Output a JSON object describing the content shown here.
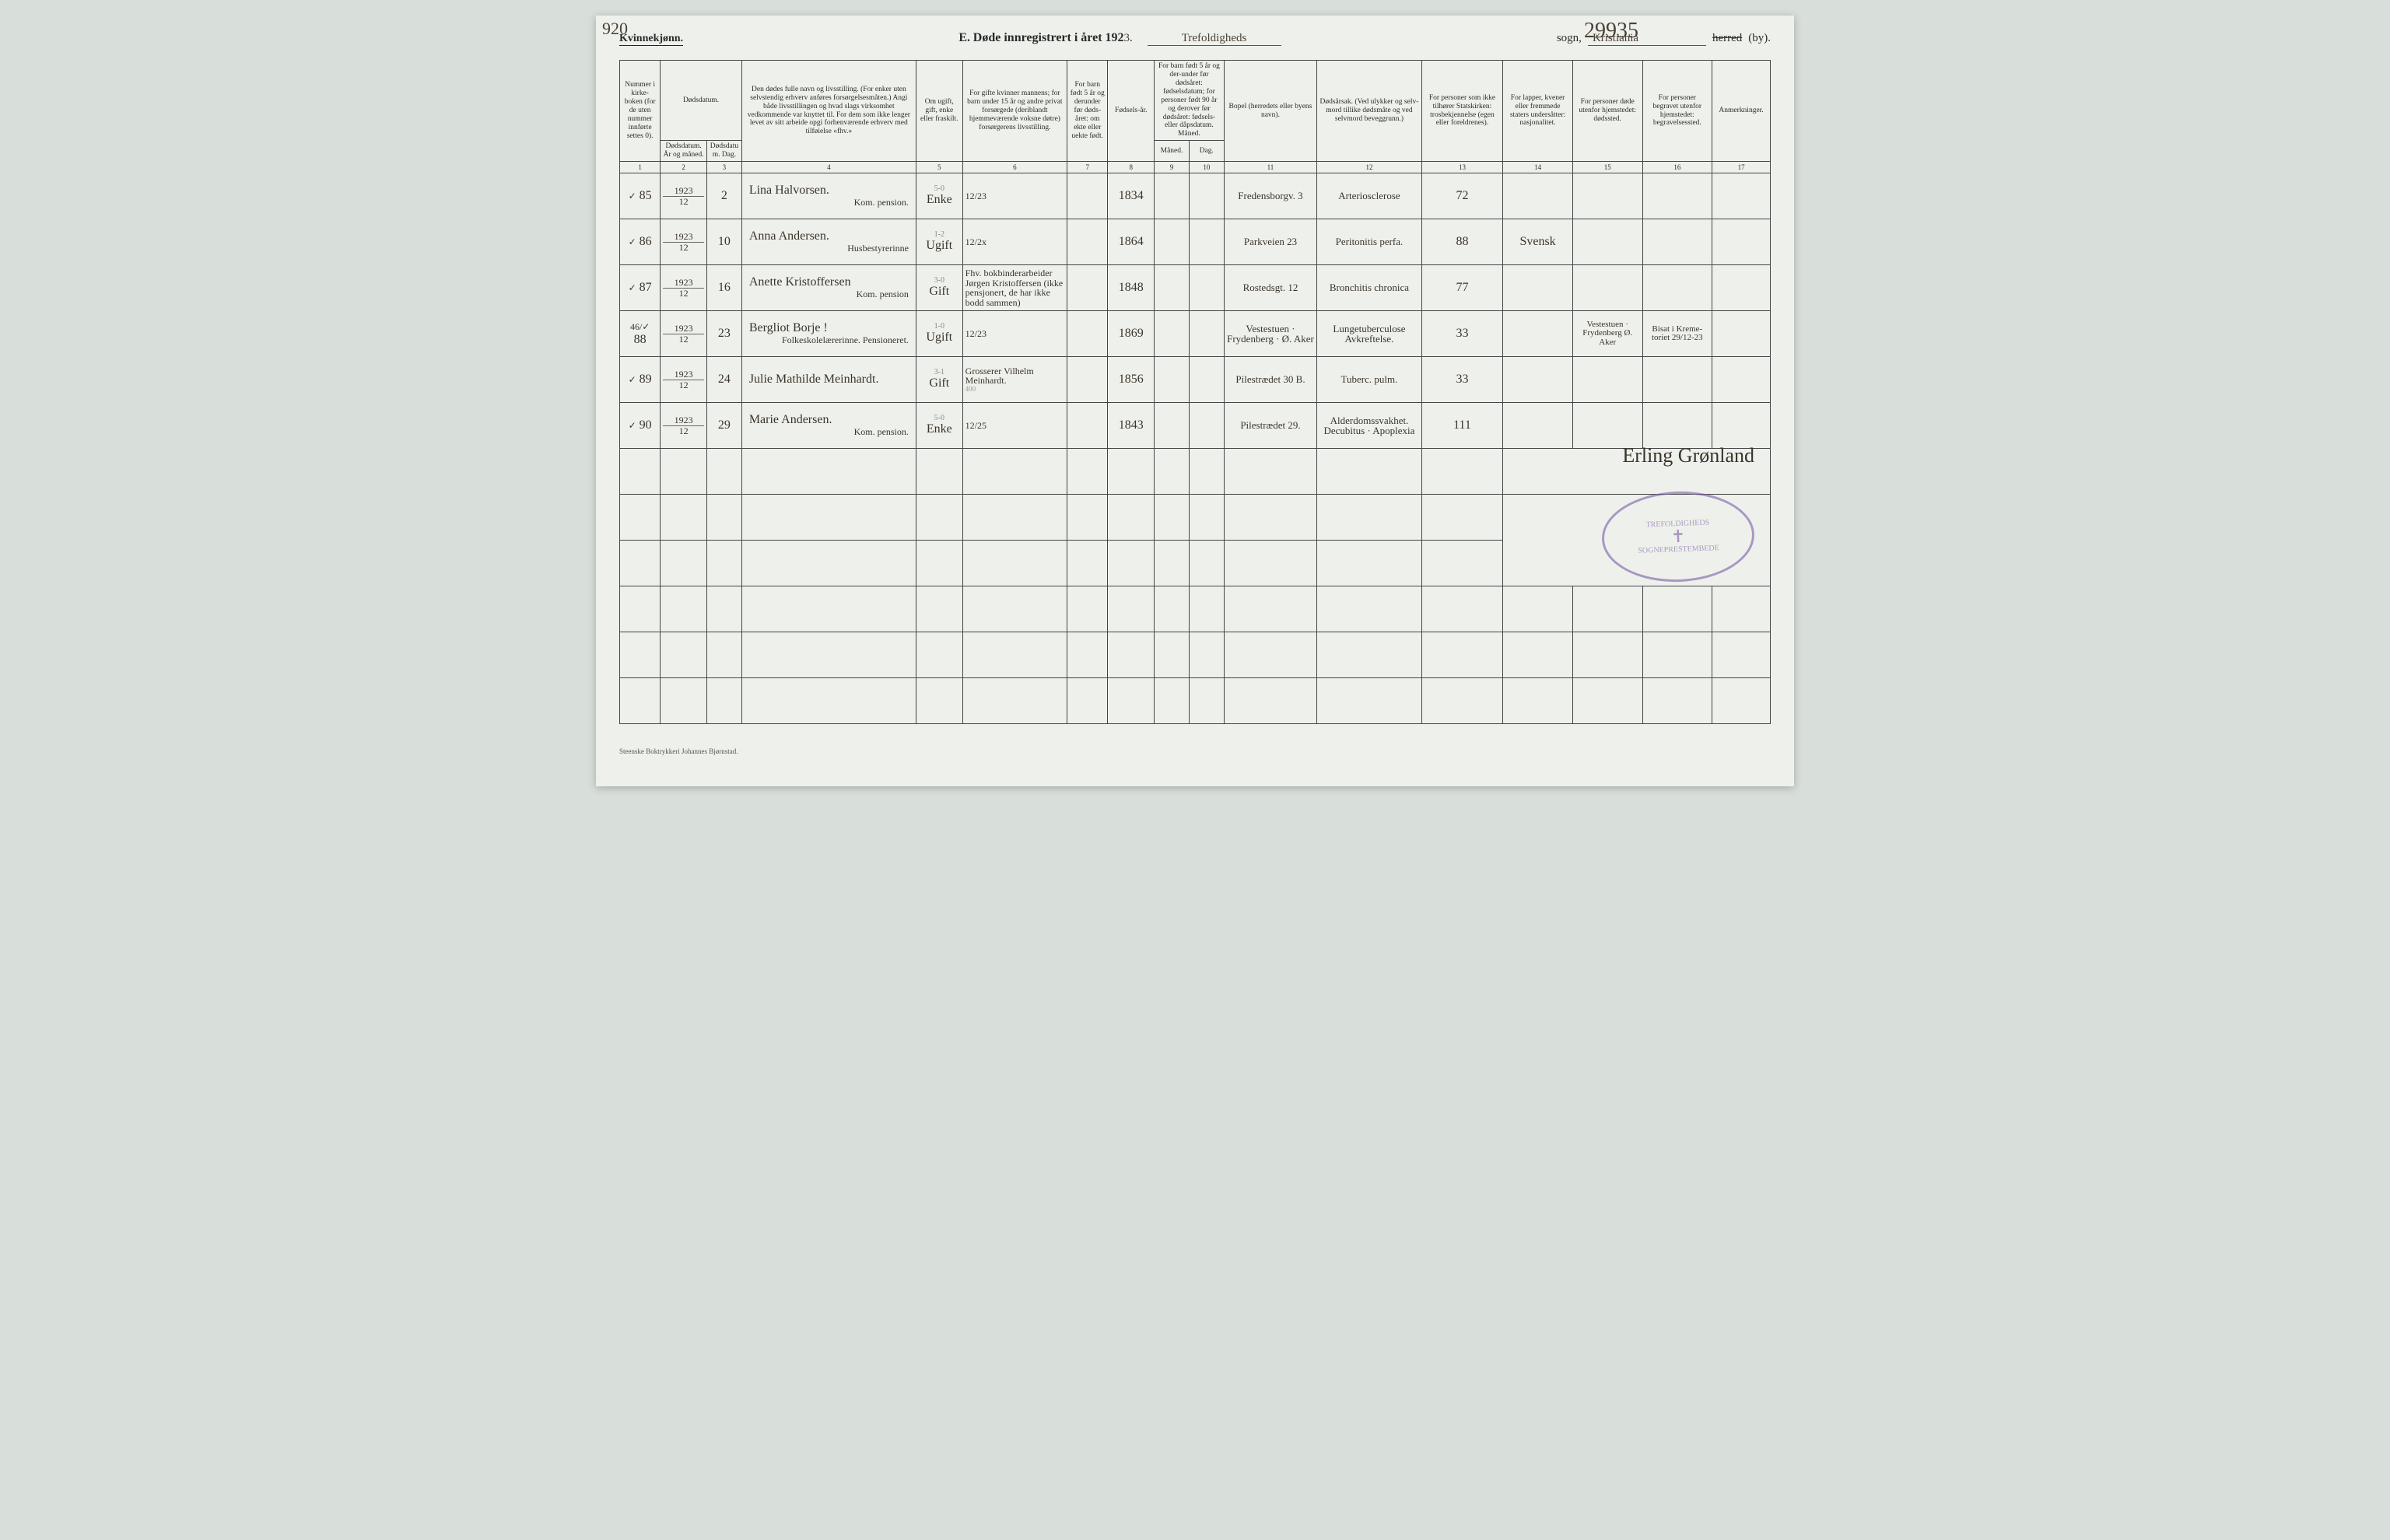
{
  "annotations": {
    "top_left": "920",
    "top_right": "29935"
  },
  "header": {
    "gender_label": "Kvinnekjønn.",
    "title_prefix": "E.",
    "title_text": "Døde innregistrert i året 192",
    "year_digit": "3",
    "parish_value": "Trefoldigheds",
    "parish_label": "sogn,",
    "district_value": "Kristiania",
    "herred_label": "herred",
    "by_label": "(by)."
  },
  "columns": [
    {
      "num": "1",
      "label": "Nummer i kirke-boken (for de uten nummer innførte settes 0)."
    },
    {
      "num": "2",
      "label": "Dødsdatum. År og måned."
    },
    {
      "num": "3",
      "label": "Dødsdatum. Dag."
    },
    {
      "num": "4",
      "label": "Den dødes fulle navn og livsstilling. (For enker uten selvstendig erhverv anføres forsørgelsesmåten.) Angi både livsstillingen og hvad slags virksomhet vedkommende var knyttet til. For dem som ikke lenger levet av sitt arbeide opgi forhenværende erhverv med tilføielse «fhv.»"
    },
    {
      "num": "5",
      "label": "Om ugift, gift, enke eller fraskilt."
    },
    {
      "num": "6",
      "label": "For gifte kvinner mannens; for barn under 15 år og andre privat forsørgede (deriblandt hjemmeværende voksne døtre) forsørgerens livsstilling."
    },
    {
      "num": "7",
      "label": "For barn født 5 år og derunder før døds-året: om ekte eller uekte født."
    },
    {
      "num": "8",
      "label": "Fødsels-år."
    },
    {
      "num": "9",
      "label": "For barn født 5 år og der-under før dødsåret: fødselsdatum; for personer født 90 år og derover før dødsåret: fødsels- eller dåpsdatum. Måned."
    },
    {
      "num": "10",
      "label": "Dag."
    },
    {
      "num": "11",
      "label": "Bopel (herredets eller byens navn)."
    },
    {
      "num": "12",
      "label": "Dødsårsak. (Ved ulykker og selv-mord tillike dødsmåte og ved selvmord beveggrunn.)"
    },
    {
      "num": "13",
      "label": "For personer som ikke tilhører Statskirken: trosbekjennelse (egen eller foreldrenes)."
    },
    {
      "num": "14",
      "label": "For lapper, kvener eller fremmede staters undersåtter: nasjonalitet."
    },
    {
      "num": "15",
      "label": "For personer døde utenfor hjemstedet: dødssted."
    },
    {
      "num": "16",
      "label": "For personer begravet utenfor hjemstedet: begravelsessted."
    },
    {
      "num": "17",
      "label": "Anmerkninger."
    }
  ],
  "col_widths_pct": [
    3.5,
    4,
    3,
    15,
    4,
    9,
    3.5,
    4,
    3,
    3,
    8,
    9,
    7,
    6,
    6,
    6,
    5
  ],
  "rows": [
    {
      "check": "✓",
      "num": "85",
      "year": "1923",
      "month": "12",
      "day": "2",
      "name": "Lina Halvorsen.",
      "occupation": "Kom. pension.",
      "status": "Enke",
      "status_top": "5-0",
      "spouse": "12/23",
      "birthyear": "1834",
      "residence": "Fredensborgv. 3",
      "cause": "Arteriosclerose",
      "col13": "72"
    },
    {
      "check": "✓",
      "num": "86",
      "year": "1923",
      "month": "12",
      "day": "10",
      "name": "Anna Andersen.",
      "occupation": "Husbestyrerinne",
      "status": "Ugift",
      "status_top": "1-2",
      "spouse": "12/2x",
      "birthyear": "1864",
      "residence": "Parkveien 23",
      "cause": "Peritonitis perfa.",
      "col13": "88",
      "col14": "Svensk"
    },
    {
      "check": "✓",
      "num": "87",
      "year": "1923",
      "month": "12",
      "day": "16",
      "name": "Anette Kristoffersen",
      "occupation": "Kom. pension",
      "status": "Gift",
      "status_top": "3-0",
      "spouse": "Fhv. bokbinderarbeider Jørgen Kristoffersen (ikke pensjonert, de har ikke bodd sammen)",
      "birthyear": "1848",
      "residence": "Rostedsgt. 12",
      "cause": "Bronchitis chronica",
      "col13": "77"
    },
    {
      "check": "46/✓",
      "num": "88",
      "year": "1923",
      "month": "12",
      "day": "23",
      "name": "Bergliot Borje !",
      "occupation": "Folkeskolelærerinne. Pensioneret.",
      "status": "Ugift",
      "status_top": "1-0",
      "spouse": "12/23",
      "birthyear": "1869",
      "residence": "Vestestuen · Frydenberg · Ø. Aker",
      "cause": "Lungetuberculose Avkreftelse.",
      "col13": "33",
      "col15": "Vestestuen · Frydenberg Ø. Aker",
      "col16": "Bisat i Kreme-toriet 29/12-23"
    },
    {
      "check": "✓",
      "num": "89",
      "year": "1923",
      "month": "12",
      "day": "24",
      "name": "Julie Mathilde Meinhardt.",
      "occupation": "",
      "status": "Gift",
      "status_top": "3-1",
      "spouse": "Grosserer Vilhelm Meinhardt.",
      "spouse_note": "400",
      "birthyear": "1856",
      "residence": "Pilestrædet 30 B.",
      "cause": "Tuberc. pulm.",
      "col13": "33"
    },
    {
      "check": "✓",
      "num": "90",
      "year": "1923",
      "month": "12",
      "day": "29",
      "name": "Marie Andersen.",
      "occupation": "Kom. pension.",
      "status": "Enke",
      "status_top": "5-0",
      "spouse": "12/25",
      "birthyear": "1843",
      "residence": "Pilestrædet 29.",
      "cause": "Alderdomssvakhet. Decubitus · Apoplexia",
      "col13": "111"
    }
  ],
  "empty_row_count": 6,
  "signature": "Erling Grønland",
  "stamp": {
    "top": "TREFOLDIGHEDS",
    "bottom": "SOGNEPRESTEMBEDE"
  },
  "footer": "Steenske Boktrykkeri Johannes Bjørnstad.",
  "colors": {
    "page_bg": "#eef1eb",
    "body_bg": "#d8dfdb",
    "ink": "#2a2a2a",
    "hand_ink": "#3a342b",
    "pencil": "#6e6450",
    "stamp": "#7a5ea8",
    "rule": "#444"
  }
}
